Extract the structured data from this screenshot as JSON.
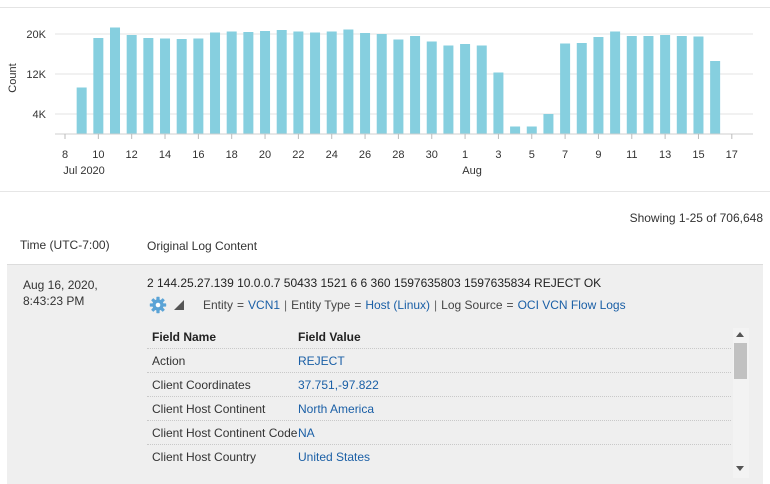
{
  "chart": {
    "ylabel": "Count",
    "yticks": [
      "4K",
      "12K",
      "20K"
    ],
    "ytick_values": [
      4000,
      12000,
      20000
    ],
    "xticks": [
      "8",
      "10",
      "12",
      "14",
      "16",
      "18",
      "20",
      "22",
      "24",
      "26",
      "28",
      "30",
      "1",
      "3",
      "5",
      "7",
      "9",
      "11",
      "13",
      "15",
      "17"
    ],
    "month_labels": [
      "Jul 2020",
      "Aug"
    ]
  },
  "chart_data": {
    "type": "bar",
    "title": "",
    "xlabel": "",
    "ylabel": "Count",
    "ylim": [
      0,
      23000
    ],
    "grid": true,
    "categories": [
      "Jul 9",
      "Jul 10",
      "Jul 11",
      "Jul 12",
      "Jul 13",
      "Jul 14",
      "Jul 15",
      "Jul 16",
      "Jul 17",
      "Jul 18",
      "Jul 19",
      "Jul 20",
      "Jul 21",
      "Jul 22",
      "Jul 23",
      "Jul 24",
      "Jul 25",
      "Jul 26",
      "Jul 27",
      "Jul 28",
      "Jul 29",
      "Jul 30",
      "Jul 31",
      "Aug 1",
      "Aug 2",
      "Aug 3",
      "Aug 4",
      "Aug 5",
      "Aug 6",
      "Aug 7",
      "Aug 8",
      "Aug 9",
      "Aug 10",
      "Aug 11",
      "Aug 12",
      "Aug 13",
      "Aug 14",
      "Aug 15",
      "Aug 16"
    ],
    "values": [
      9300,
      19200,
      21300,
      19800,
      19200,
      19100,
      19000,
      19100,
      20300,
      20500,
      20400,
      20600,
      20800,
      20500,
      20300,
      20500,
      20900,
      20200,
      20000,
      18900,
      19600,
      18500,
      17700,
      18000,
      17700,
      12300,
      1500,
      1500,
      4000,
      18100,
      18200,
      19400,
      20500,
      19600,
      19600,
      19800,
      19600,
      19500,
      14600
    ]
  },
  "status": {
    "showing": "Showing 1-25 of 706,648"
  },
  "table": {
    "col_time": "Time (UTC-7:00)",
    "col_original": "Original Log Content",
    "row": {
      "date_line1": "Aug 16, 2020,",
      "date_line2": "8:43:23 PM",
      "raw": "2 144.25.27.139 10.0.0.7 50433 1521 6 6 360 1597635803 1597635834 REJECT OK",
      "meta": {
        "entity_label": "Entity",
        "entity_value": "VCN1",
        "entity_type_label": "Entity Type",
        "entity_type_value": "Host (Linux)",
        "log_source_label": "Log Source",
        "log_source_value": "OCI VCN Flow Logs",
        "eq": "=",
        "sep": "|"
      },
      "fields_header": {
        "name": "Field Name",
        "value": "Field Value"
      },
      "fields": [
        {
          "name": "Action",
          "value": "REJECT"
        },
        {
          "name": "Client Coordinates",
          "value": "37.751,-97.822"
        },
        {
          "name": "Client Host Continent",
          "value": "North America"
        },
        {
          "name": "Client Host Continent Code",
          "value": "NA"
        },
        {
          "name": "Client Host Country",
          "value": "United States"
        }
      ]
    }
  },
  "icons": [
    "gear-icon",
    "expand-triangle-icon",
    "scroll-up-icon",
    "scroll-down-icon"
  ],
  "colors": {
    "bar": "#86cfdf",
    "link": "#1a5fa6",
    "gear": "#5aa3d6"
  }
}
